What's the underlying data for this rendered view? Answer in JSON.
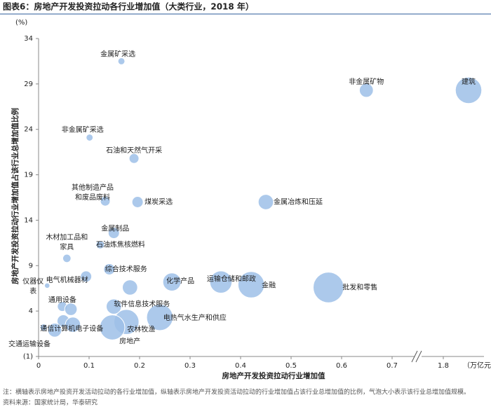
{
  "chart_data": {
    "type": "bubble",
    "title": "图表6：房地产开发投资拉动各行业增加值（大类行业，2018 年）",
    "x_label": "房地产开发投资拉动行业增加值",
    "y_label": "房地产开发投资拉动行业增加值占该行业总增加值比例",
    "x_unit": "（万亿元）",
    "y_unit": "(%)",
    "note": "注：横轴表示房地产投资开发活动拉动的各行业增加值，纵轴表示房地产开发投资活动拉动的行业增加值占该行业总增加值的比例，气泡大小表示该行业总增加值规模。",
    "source": "资料来源：国家统计局，华泰研究",
    "color": "#9dbfe8",
    "labels": [
      [
        "金属矿采选"
      ],
      [
        "非金属矿物"
      ],
      [
        "建筑"
      ],
      [
        "非金属矿采选"
      ],
      [
        "石油和天然气开采"
      ],
      [
        "其他制造产品",
        "和废品废料"
      ],
      [
        "煤炭采选"
      ],
      [
        "金属冶炼和压延"
      ],
      [
        "金属制品"
      ],
      [
        "木材加工品和",
        "家具"
      ],
      [
        "石油炼焦核燃料"
      ],
      [
        "综合技术服务"
      ],
      [
        "电气机械器材"
      ],
      [
        "仪器仪",
        "表"
      ],
      [
        "化学产品"
      ],
      [
        "运输仓储和邮政"
      ],
      [
        "金融"
      ],
      [
        "批发和零售"
      ],
      null,
      [
        "通用设备"
      ],
      [
        "软件信息技术服务"
      ],
      null,
      [
        "电热气水生产和供应"
      ],
      [
        "通信计算机电子设备"
      ],
      [
        "农林牧渔"
      ],
      [
        "房地产"
      ],
      [
        "交通运输设备"
      ],
      null,
      null
    ],
    "x": [
      0.164,
      0.649,
      1.85,
      0.101,
      0.189,
      0.132,
      0.196,
      0.45,
      0.149,
      0.056,
      0.122,
      0.14,
      0.094,
      0.017,
      0.264,
      0.361,
      0.421,
      0.574,
      0.181,
      0.047,
      0.149,
      0.064,
      0.24,
      0.049,
      0.174,
      0.146,
      0.032,
      0.01,
      0.068
    ],
    "y": [
      31.5,
      28.3,
      28.3,
      23.1,
      20.8,
      16.1,
      16.0,
      16.0,
      12.6,
      9.8,
      11.3,
      8.6,
      7.8,
      6.8,
      7.2,
      7.2,
      6.9,
      6.6,
      6.6,
      4.5,
      4.5,
      4.2,
      3.3,
      2.9,
      2.8,
      2.2,
      1.9,
      2.2,
      2.5
    ],
    "size": [
      0.5,
      2,
      7.2,
      0.5,
      1,
      1,
      1.3,
      2.4,
      1.3,
      0.7,
      0.7,
      1.3,
      1.3,
      0.3,
      3.4,
      5.1,
      7.2,
      9.7,
      2.4,
      1,
      2.4,
      1.6,
      7.2,
      1.6,
      6.5,
      6.5,
      2,
      0.5,
      2.4
    ],
    "xlim": [
      0,
      1.9
    ],
    "xbreak": [
      0.75,
      1.75
    ],
    "ylim": [
      -1,
      34
    ],
    "xticks": [
      0,
      0.1,
      0.2,
      0.3,
      0.4,
      0.5,
      0.6,
      0.7,
      1.8
    ],
    "yticks": [
      {
        "value": -1,
        "label": "(1)"
      },
      4,
      9,
      14,
      19,
      24,
      29,
      34
    ]
  }
}
